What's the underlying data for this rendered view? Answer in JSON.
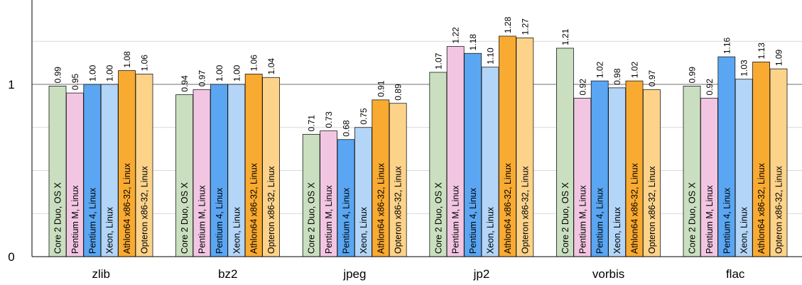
{
  "chart_data": {
    "type": "bar",
    "categories": [
      "zlib",
      "bz2",
      "jpeg",
      "jp2",
      "vorbis",
      "flac"
    ],
    "series": [
      {
        "name": "Core 2 Duo, OS X",
        "color": "#c9dfbf",
        "values": [
          0.99,
          0.94,
          0.71,
          1.07,
          1.21,
          0.99
        ]
      },
      {
        "name": "Pentium M, Linux",
        "color": "#f2c6e3",
        "values": [
          0.95,
          0.97,
          0.73,
          1.22,
          0.92,
          0.92
        ]
      },
      {
        "name": "Pentium 4, Linux",
        "color": "#5aa6f2",
        "values": [
          1.0,
          1.0,
          0.68,
          1.18,
          1.02,
          1.16
        ]
      },
      {
        "name": "Xeon, Linux",
        "color": "#b3d5f7",
        "values": [
          1.0,
          1.0,
          0.75,
          1.1,
          0.98,
          1.03
        ]
      },
      {
        "name": "Athlon64 x86-32, Linux",
        "color": "#f9aa30",
        "values": [
          1.08,
          1.06,
          0.91,
          1.28,
          1.02,
          1.13
        ]
      },
      {
        "name": "Opteron x86-32, Linux",
        "color": "#fdd38a",
        "values": [
          1.06,
          1.04,
          0.89,
          1.27,
          0.97,
          1.09
        ]
      }
    ],
    "value_labels": [
      [
        "0.99",
        "0.95",
        "1.00",
        "1.00",
        "1.08",
        "1.06"
      ],
      [
        "0.94",
        "0.97",
        "1.00",
        "1.00",
        "1.06",
        "1.04"
      ],
      [
        "0.71",
        "0.73",
        "0.68",
        "0.75",
        "0.91",
        "0.89"
      ],
      [
        "1.07",
        "1.22",
        "1.18",
        "1.10",
        "1.28",
        "1.27"
      ],
      [
        "1.21",
        "0.92",
        "1.02",
        "0.98",
        "1.02",
        "0.97"
      ],
      [
        "0.99",
        "0.92",
        "1.16",
        "1.03",
        "1.13",
        "1.09"
      ]
    ],
    "ylim": [
      0,
      1.5
    ],
    "yticks": [
      0,
      1
    ],
    "ytick_labels": [
      "0",
      "1"
    ],
    "minor_gridlines": [
      0.25,
      0.5,
      0.75,
      1.25
    ],
    "grid": true,
    "title": "",
    "xlabel": "",
    "ylabel": ""
  }
}
